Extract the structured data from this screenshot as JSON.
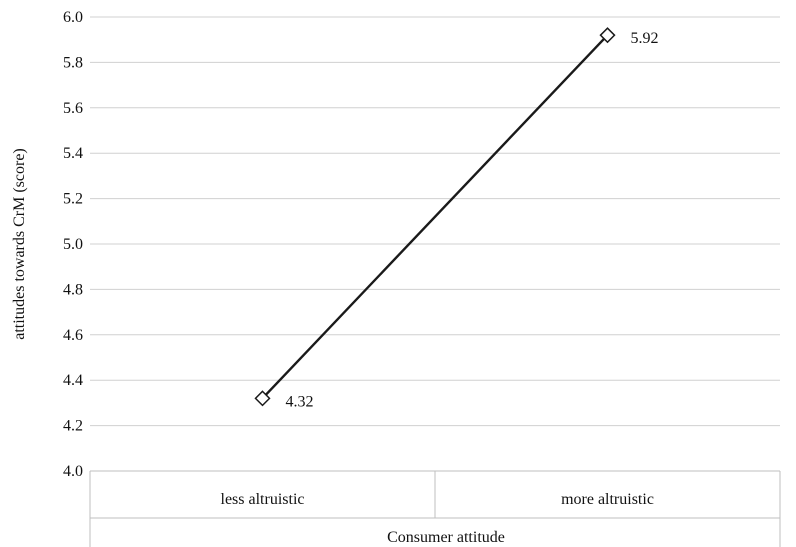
{
  "chart_data": {
    "type": "line",
    "categories": [
      "less altruistic",
      "more altruistic"
    ],
    "series": [
      {
        "values": [
          4.32,
          5.92
        ],
        "data_labels": [
          "4.32",
          "5.92"
        ],
        "color": "#1a1a1a",
        "marker": "diamond-open"
      }
    ],
    "title": "",
    "xlabel": "Consumer attitude",
    "ylabel": "attitudes towards CrM  (score)",
    "ylim": [
      4.0,
      6.0
    ],
    "yticks": [
      "4.0",
      "4.2",
      "4.4",
      "4.6",
      "4.8",
      "5.0",
      "5.2",
      "5.4",
      "5.6",
      "5.8",
      "6.0"
    ],
    "grid": true,
    "legend": "none"
  }
}
